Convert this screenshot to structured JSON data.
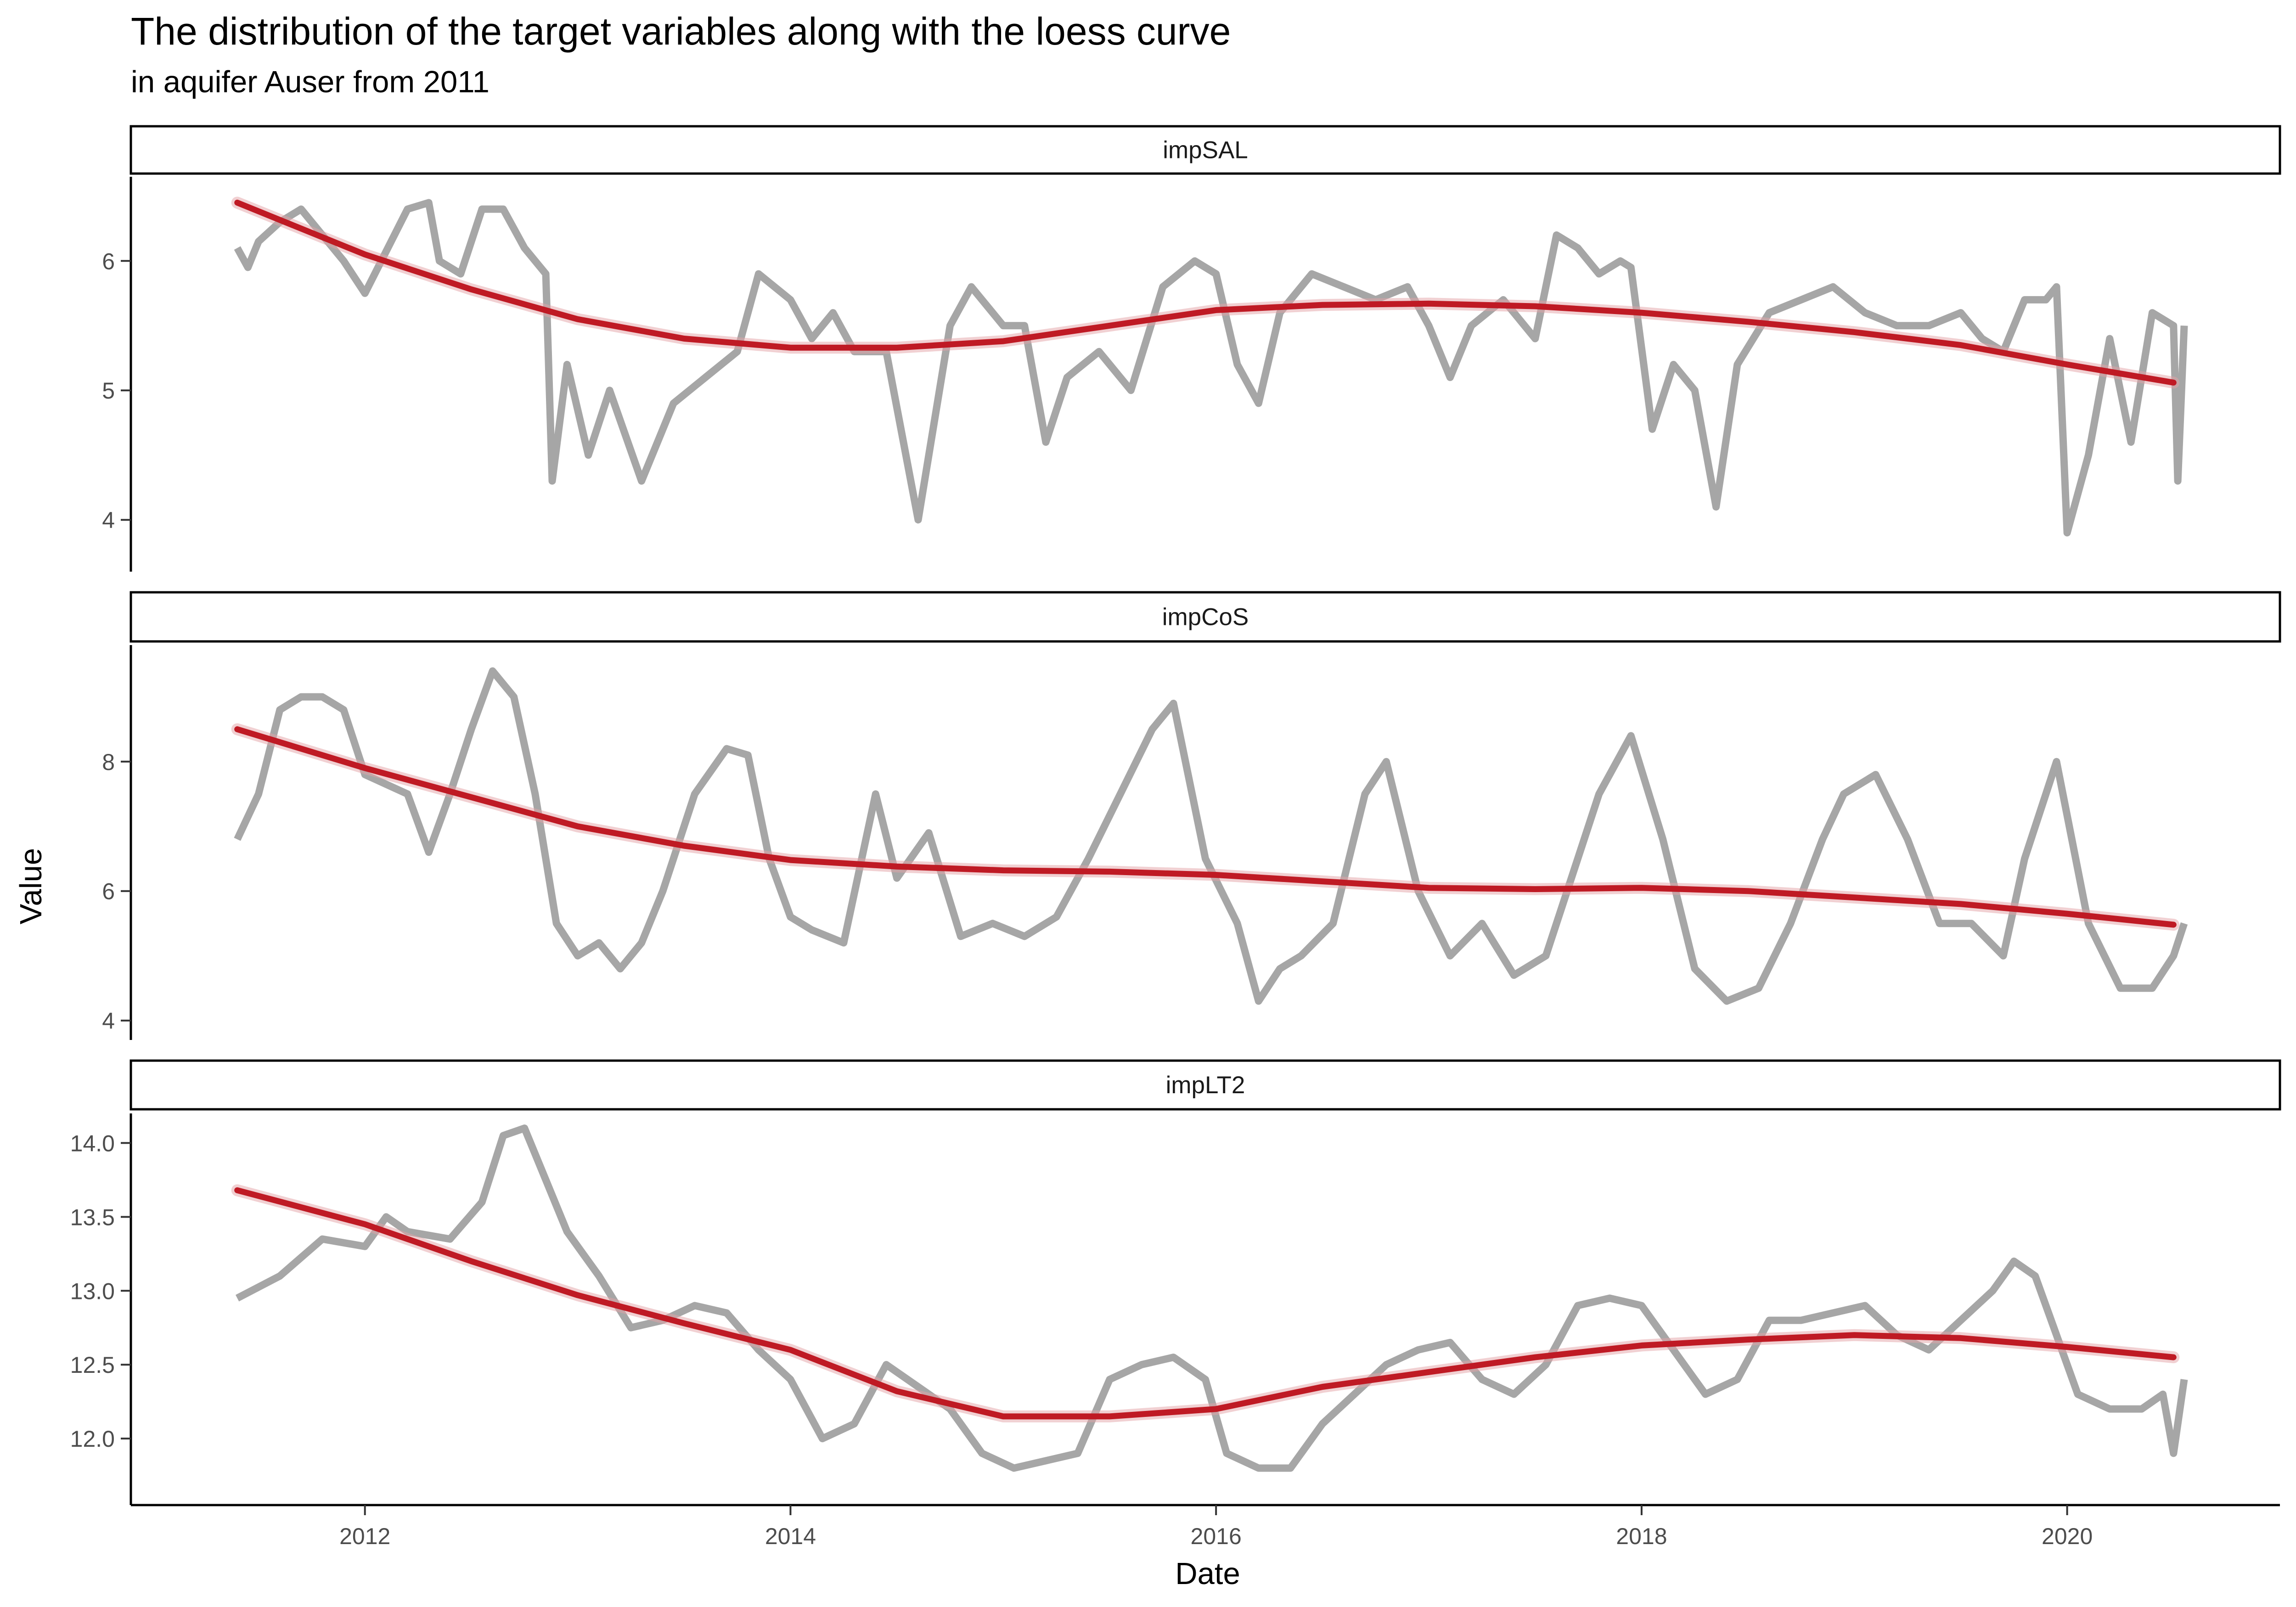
{
  "chart_data": {
    "type": "line",
    "title": "The distribution of the target variables along with the loess curve",
    "subtitle": "in aquifer Auser from 2011",
    "xlabel": "Date",
    "ylabel": "Value",
    "xlim": [
      2010.9,
      2021.0
    ],
    "x_ticks": [
      2012,
      2014,
      2016,
      2018,
      2020
    ],
    "colors": {
      "raw": "#a6a6a6",
      "loess": "#bf1a24",
      "band": "#e3a2a6"
    },
    "panels": [
      {
        "name": "impSAL",
        "ylim": [
          3.6,
          6.65
        ],
        "y_ticks": [
          4,
          5,
          6
        ],
        "y_tick_labels": [
          "4",
          "5",
          "6"
        ],
        "series": [
          {
            "type": "raw",
            "x": [
              2011.4,
              2011.45,
              2011.5,
              2011.6,
              2011.7,
              2011.8,
              2011.9,
              2012.0,
              2012.2,
              2012.3,
              2012.35,
              2012.45,
              2012.55,
              2012.65,
              2012.75,
              2012.8,
              2012.85,
              2012.88,
              2012.95,
              2013.05,
              2013.15,
              2013.3,
              2013.45,
              2013.6,
              2013.75,
              2013.85,
              2014.0,
              2014.1,
              2014.2,
              2014.3,
              2014.45,
              2014.6,
              2014.75,
              2014.85,
              2015.0,
              2015.1,
              2015.2,
              2015.3,
              2015.45,
              2015.6,
              2015.75,
              2015.9,
              2016.0,
              2016.1,
              2016.2,
              2016.3,
              2016.45,
              2016.6,
              2016.75,
              2016.9,
              2017.0,
              2017.1,
              2017.2,
              2017.35,
              2017.5,
              2017.6,
              2017.7,
              2017.8,
              2017.9,
              2017.95,
              2018.05,
              2018.15,
              2018.25,
              2018.35,
              2018.45,
              2018.6,
              2018.75,
              2018.9,
              2019.05,
              2019.2,
              2019.35,
              2019.5,
              2019.6,
              2019.7,
              2019.8,
              2019.9,
              2019.95,
              2020.0,
              2020.1,
              2020.2,
              2020.3,
              2020.4,
              2020.5,
              2020.52,
              2020.55
            ],
            "y": [
              6.1,
              5.95,
              6.15,
              6.3,
              6.4,
              6.2,
              6.0,
              5.75,
              6.4,
              6.45,
              6.0,
              5.9,
              6.4,
              6.4,
              6.1,
              6.0,
              5.9,
              4.3,
              5.2,
              4.5,
              5.0,
              4.3,
              4.9,
              5.1,
              5.3,
              5.9,
              5.7,
              5.4,
              5.6,
              5.3,
              5.3,
              4.0,
              5.5,
              5.8,
              5.5,
              5.5,
              4.6,
              5.1,
              5.3,
              5.0,
              5.8,
              6.0,
              5.9,
              5.2,
              4.9,
              5.6,
              5.9,
              5.8,
              5.7,
              5.8,
              5.5,
              5.1,
              5.5,
              5.7,
              5.4,
              6.2,
              6.1,
              5.9,
              6.0,
              5.95,
              4.7,
              5.2,
              5.0,
              4.1,
              5.2,
              5.6,
              5.7,
              5.8,
              5.6,
              5.5,
              5.5,
              5.6,
              5.4,
              5.3,
              5.7,
              5.7,
              5.8,
              3.9,
              4.5,
              5.4,
              4.6,
              5.6,
              5.5,
              4.3,
              5.5
            ]
          },
          {
            "type": "loess",
            "x": [
              2011.4,
              2012.0,
              2012.5,
              2013.0,
              2013.5,
              2014.0,
              2014.5,
              2015.0,
              2015.5,
              2016.0,
              2016.5,
              2017.0,
              2017.5,
              2018.0,
              2018.5,
              2019.0,
              2019.5,
              2020.0,
              2020.5
            ],
            "y": [
              6.45,
              6.05,
              5.78,
              5.55,
              5.4,
              5.33,
              5.33,
              5.38,
              5.5,
              5.62,
              5.66,
              5.67,
              5.65,
              5.6,
              5.53,
              5.45,
              5.35,
              5.2,
              5.06
            ]
          }
        ]
      },
      {
        "name": "impCoS",
        "ylim": [
          3.7,
          9.8
        ],
        "y_ticks": [
          4,
          6,
          8
        ],
        "y_tick_labels": [
          "4",
          "6",
          "8"
        ],
        "series": [
          {
            "type": "raw",
            "x": [
              2011.4,
              2011.5,
              2011.6,
              2011.7,
              2011.8,
              2011.9,
              2012.0,
              2012.2,
              2012.3,
              2012.4,
              2012.5,
              2012.6,
              2012.7,
              2012.8,
              2012.9,
              2013.0,
              2013.1,
              2013.2,
              2013.3,
              2013.4,
              2013.55,
              2013.7,
              2013.8,
              2013.9,
              2014.0,
              2014.1,
              2014.25,
              2014.4,
              2014.5,
              2014.65,
              2014.8,
              2014.95,
              2015.1,
              2015.25,
              2015.4,
              2015.55,
              2015.7,
              2015.8,
              2015.95,
              2016.1,
              2016.2,
              2016.3,
              2016.4,
              2016.55,
              2016.7,
              2016.8,
              2016.95,
              2017.1,
              2017.25,
              2017.4,
              2017.55,
              2017.7,
              2017.8,
              2017.95,
              2018.1,
              2018.25,
              2018.4,
              2018.55,
              2018.7,
              2018.85,
              2018.95,
              2019.1,
              2019.25,
              2019.4,
              2019.55,
              2019.7,
              2019.8,
              2019.95,
              2020.1,
              2020.25,
              2020.4,
              2020.5,
              2020.55
            ],
            "y": [
              6.8,
              7.5,
              8.8,
              9.0,
              9.0,
              8.8,
              7.8,
              7.5,
              6.6,
              7.5,
              8.5,
              9.4,
              9.0,
              7.5,
              5.5,
              5.0,
              5.2,
              4.8,
              5.2,
              6.0,
              7.5,
              8.2,
              8.1,
              6.5,
              5.6,
              5.4,
              5.2,
              7.5,
              6.2,
              6.9,
              5.3,
              5.5,
              5.3,
              5.6,
              6.5,
              7.5,
              8.5,
              8.9,
              6.5,
              5.5,
              4.3,
              4.8,
              5.0,
              5.5,
              7.5,
              8.0,
              6.0,
              5.0,
              5.5,
              4.7,
              5.0,
              6.5,
              7.5,
              8.4,
              6.8,
              4.8,
              4.3,
              4.5,
              5.5,
              6.8,
              7.5,
              7.8,
              6.8,
              5.5,
              5.5,
              5.0,
              6.5,
              8.0,
              5.5,
              4.5,
              4.5,
              5.0,
              5.5
            ]
          },
          {
            "type": "loess",
            "x": [
              2011.4,
              2012.0,
              2012.5,
              2013.0,
              2013.5,
              2014.0,
              2014.5,
              2015.0,
              2015.5,
              2016.0,
              2016.5,
              2017.0,
              2017.5,
              2018.0,
              2018.5,
              2019.0,
              2019.5,
              2020.0,
              2020.5
            ],
            "y": [
              8.5,
              7.9,
              7.45,
              7.0,
              6.7,
              6.48,
              6.38,
              6.32,
              6.3,
              6.25,
              6.15,
              6.05,
              6.03,
              6.05,
              6.0,
              5.9,
              5.8,
              5.65,
              5.48
            ]
          }
        ]
      },
      {
        "name": "impLT2",
        "ylim": [
          11.55,
          14.2
        ],
        "y_ticks": [
          12.0,
          12.5,
          13.0,
          13.5,
          14.0
        ],
        "y_tick_labels": [
          "12.0",
          "12.5",
          "13.0",
          "13.5",
          "14.0"
        ],
        "series": [
          {
            "type": "raw",
            "x": [
              2011.4,
              2011.6,
              2011.8,
              2012.0,
              2012.1,
              2012.2,
              2012.4,
              2012.55,
              2012.65,
              2012.75,
              2012.85,
              2012.95,
              2013.1,
              2013.25,
              2013.4,
              2013.55,
              2013.7,
              2013.85,
              2014.0,
              2014.15,
              2014.3,
              2014.45,
              2014.6,
              2014.75,
              2014.9,
              2015.05,
              2015.2,
              2015.35,
              2015.5,
              2015.65,
              2015.8,
              2015.95,
              2016.05,
              2016.2,
              2016.35,
              2016.5,
              2016.65,
              2016.8,
              2016.95,
              2017.1,
              2017.25,
              2017.4,
              2017.55,
              2017.7,
              2017.85,
              2018.0,
              2018.15,
              2018.3,
              2018.45,
              2018.6,
              2018.75,
              2018.9,
              2019.05,
              2019.2,
              2019.35,
              2019.5,
              2019.65,
              2019.75,
              2019.85,
              2019.95,
              2020.05,
              2020.2,
              2020.35,
              2020.45,
              2020.5,
              2020.55
            ],
            "y": [
              12.95,
              13.1,
              13.35,
              13.3,
              13.5,
              13.4,
              13.35,
              13.6,
              14.05,
              14.1,
              13.75,
              13.4,
              13.1,
              12.75,
              12.8,
              12.9,
              12.85,
              12.6,
              12.4,
              12.0,
              12.1,
              12.5,
              12.35,
              12.2,
              11.9,
              11.8,
              11.85,
              11.9,
              12.4,
              12.5,
              12.55,
              12.4,
              11.9,
              11.8,
              11.8,
              12.1,
              12.3,
              12.5,
              12.6,
              12.65,
              12.4,
              12.3,
              12.5,
              12.9,
              12.95,
              12.9,
              12.6,
              12.3,
              12.4,
              12.8,
              12.8,
              12.85,
              12.9,
              12.7,
              12.6,
              12.8,
              13.0,
              13.2,
              13.1,
              12.7,
              12.3,
              12.2,
              12.2,
              12.3,
              11.9,
              12.4
            ]
          },
          {
            "type": "loess",
            "x": [
              2011.4,
              2012.0,
              2012.5,
              2013.0,
              2013.5,
              2014.0,
              2014.5,
              2015.0,
              2015.5,
              2016.0,
              2016.5,
              2017.0,
              2017.5,
              2018.0,
              2018.5,
              2019.0,
              2019.5,
              2020.0,
              2020.5
            ],
            "y": [
              13.68,
              13.45,
              13.2,
              12.97,
              12.78,
              12.6,
              12.32,
              12.15,
              12.15,
              12.2,
              12.35,
              12.45,
              12.55,
              12.63,
              12.67,
              12.7,
              12.68,
              12.62,
              12.55
            ]
          }
        ]
      }
    ]
  }
}
